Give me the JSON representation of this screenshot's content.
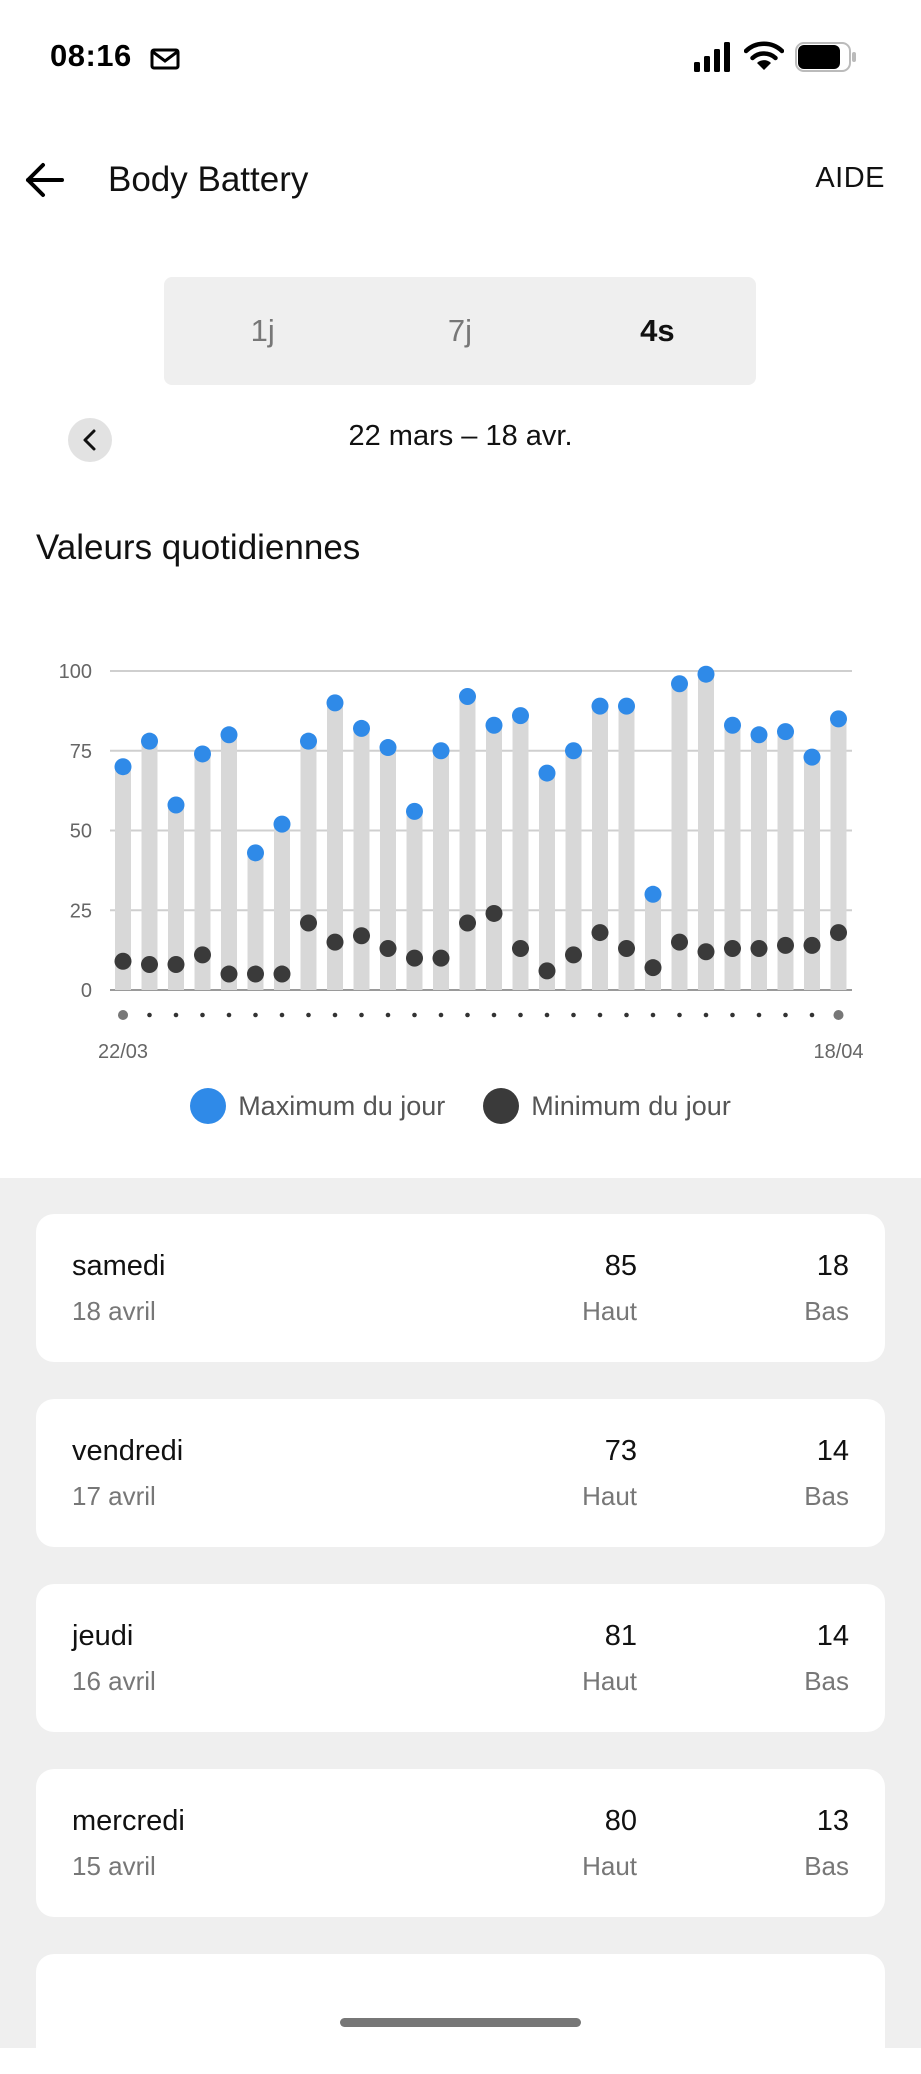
{
  "status_bar": {
    "time": "08:16"
  },
  "header": {
    "title": "Body Battery",
    "help_label": "AIDE"
  },
  "period_tabs": [
    {
      "label": "1j",
      "active": false
    },
    {
      "label": "7j",
      "active": false
    },
    {
      "label": "4s",
      "active": true
    }
  ],
  "date_range": "22 mars – 18 avr.",
  "section_title": "Valeurs quotidiennes",
  "colors": {
    "max": "#2f8ae8",
    "min": "#3a3a3a",
    "bar": "#d8d8d8",
    "accent": "#2f8ae8"
  },
  "chart_data": {
    "type": "range-bar",
    "x_start_label": "22/03",
    "x_end_label": "18/04",
    "ylim": [
      0,
      100
    ],
    "yticks": [
      0,
      25,
      50,
      75,
      100
    ],
    "grid": true,
    "legend_position": "bottom",
    "series": [
      {
        "name": "Maximum du jour",
        "values": [
          70,
          78,
          58,
          74,
          80,
          43,
          52,
          78,
          90,
          82,
          76,
          56,
          75,
          92,
          83,
          86,
          68,
          75,
          89,
          89,
          30,
          96,
          99,
          83,
          80,
          81,
          73,
          85
        ]
      },
      {
        "name": "Minimum du jour",
        "values": [
          9,
          8,
          8,
          11,
          5,
          5,
          5,
          21,
          15,
          17,
          13,
          10,
          10,
          21,
          24,
          13,
          6,
          11,
          18,
          13,
          7,
          15,
          12,
          13,
          13,
          14,
          14,
          18
        ]
      }
    ]
  },
  "legend": {
    "max_label": "Maximum du jour",
    "min_label": "Minimum du jour"
  },
  "days": [
    {
      "day": "samedi",
      "date": "18 avril",
      "high": "85",
      "high_label": "Haut",
      "low": "18",
      "low_label": "Bas"
    },
    {
      "day": "vendredi",
      "date": "17 avril",
      "high": "73",
      "high_label": "Haut",
      "low": "14",
      "low_label": "Bas"
    },
    {
      "day": "jeudi",
      "date": "16 avril",
      "high": "81",
      "high_label": "Haut",
      "low": "14",
      "low_label": "Bas"
    },
    {
      "day": "mercredi",
      "date": "15 avril",
      "high": "80",
      "high_label": "Haut",
      "low": "13",
      "low_label": "Bas"
    }
  ]
}
